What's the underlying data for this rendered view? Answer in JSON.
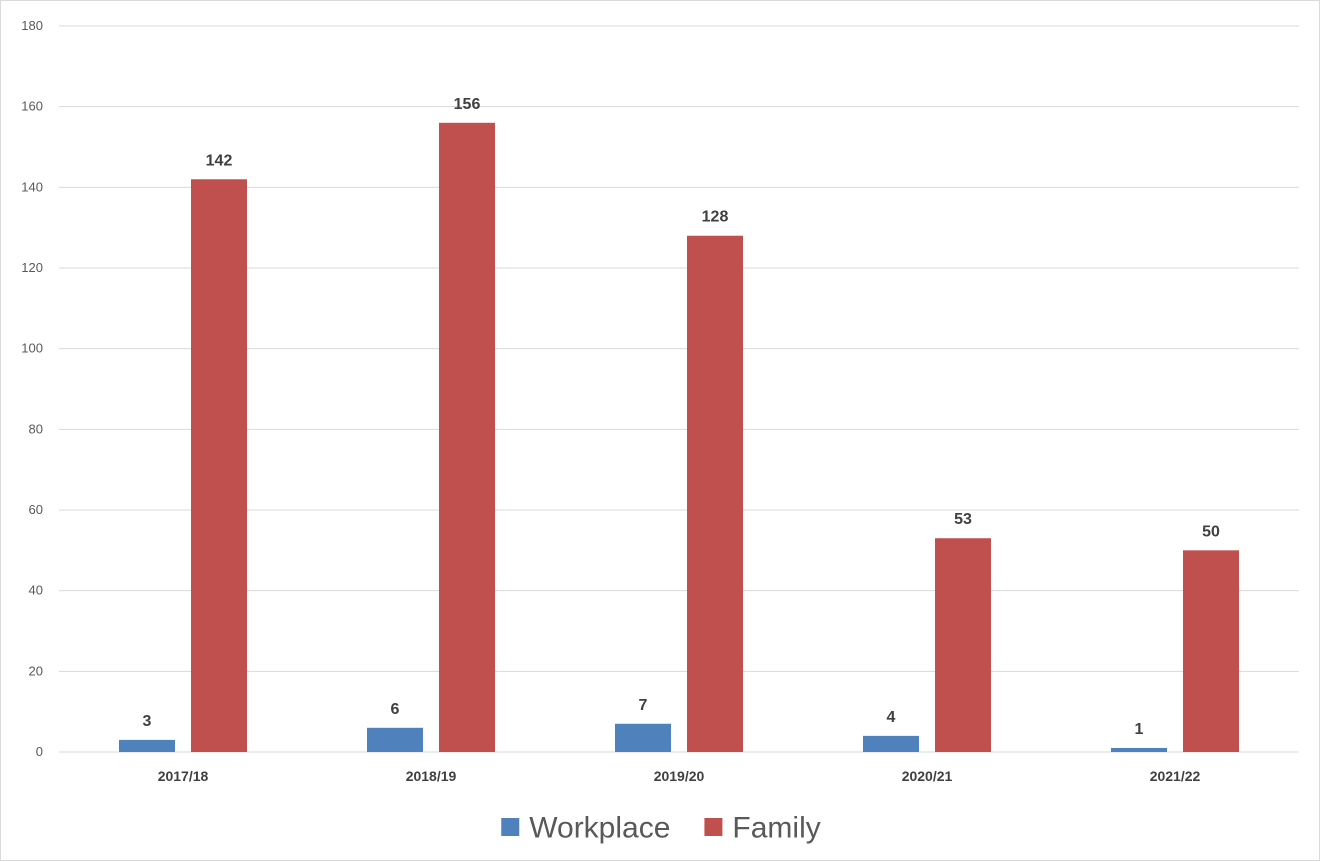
{
  "chart_data": {
    "type": "bar",
    "categories": [
      "2017/18",
      "2018/19",
      "2019/20",
      "2020/21",
      "2021/22"
    ],
    "series": [
      {
        "name": "Workplace",
        "values": [
          3,
          6,
          7,
          4,
          1
        ],
        "color": "#4f81bd"
      },
      {
        "name": "Family",
        "values": [
          142,
          156,
          128,
          53,
          50
        ],
        "color": "#c0504d"
      }
    ],
    "ylim": [
      0,
      180
    ],
    "yticks": [
      0,
      20,
      40,
      60,
      80,
      100,
      120,
      140,
      160,
      180
    ],
    "grid": true,
    "legend_position": "bottom",
    "data_labels": true
  }
}
